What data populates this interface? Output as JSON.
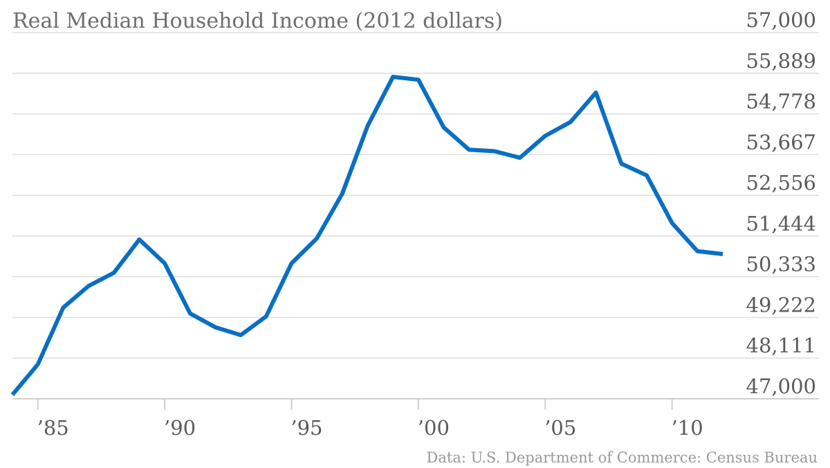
{
  "chart_data": {
    "type": "line",
    "title": "Real Median Household Income (2012 dollars)",
    "source": "Data: U.S. Department of Commerce: Census Bureau",
    "xlabel": "",
    "ylabel": "",
    "x": [
      1984,
      1985,
      1986,
      1987,
      1988,
      1989,
      1990,
      1991,
      1992,
      1993,
      1994,
      1995,
      1996,
      1997,
      1998,
      1999,
      2000,
      2001,
      2002,
      2003,
      2004,
      2005,
      2006,
      2007,
      2008,
      2009,
      2010,
      2011,
      2012
    ],
    "series": [
      {
        "values": [
          47110,
          47940,
          49490,
          50080,
          50440,
          51350,
          50700,
          49330,
          48950,
          48740,
          49250,
          50700,
          51380,
          52600,
          54450,
          55790,
          55710,
          54410,
          53800,
          53760,
          53580,
          54180,
          54560,
          55360,
          53420,
          53100,
          51800,
          51030,
          50950
        ]
      }
    ],
    "xlim": [
      1984,
      2012
    ],
    "ylim": [
      47000,
      57000
    ],
    "ytick_values": [
      47000,
      48111,
      49222,
      50333,
      51444,
      52556,
      53667,
      54778,
      55889,
      57000
    ],
    "ytick_labels": [
      "47,000",
      "48,111",
      "49,222",
      "50,333",
      "51,444",
      "52,556",
      "53,667",
      "54,778",
      "55,889",
      "57,000"
    ],
    "xtick_values": [
      1985,
      1990,
      1995,
      2000,
      2005,
      2010
    ],
    "xtick_labels": [
      "’85",
      "’90",
      "’95",
      "’00",
      "’05",
      "’10"
    ],
    "grid": true,
    "y_axis_side": "right",
    "line_color": "#0a6fc2"
  }
}
